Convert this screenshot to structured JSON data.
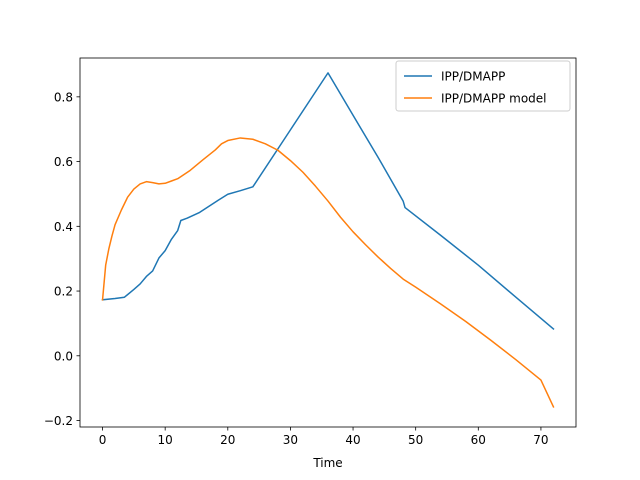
{
  "chart_data": {
    "type": "line",
    "xlabel": "Time",
    "ylabel": "",
    "title": "",
    "xlim": [
      -3.6,
      75.6
    ],
    "ylim": [
      -0.22,
      0.92
    ],
    "xticks": [
      0,
      10,
      20,
      30,
      40,
      50,
      60,
      70
    ],
    "yticks": [
      -0.2,
      0.0,
      0.2,
      0.4,
      0.6,
      0.8
    ],
    "ytick_labels": [
      "−0.2",
      "0.0",
      "0.2",
      "0.4",
      "0.6",
      "0.8"
    ],
    "grid": false,
    "legend_position": "top-right",
    "series": [
      {
        "name": "IPP/DMAPP",
        "color": "#1f77b4",
        "points": [
          [
            0,
            0.173
          ],
          [
            2,
            0.177
          ],
          [
            3.5,
            0.181
          ],
          [
            5,
            0.205
          ],
          [
            6,
            0.222
          ],
          [
            7,
            0.245
          ],
          [
            8,
            0.262
          ],
          [
            9,
            0.302
          ],
          [
            10,
            0.325
          ],
          [
            11,
            0.36
          ],
          [
            12,
            0.387
          ],
          [
            12.5,
            0.418
          ],
          [
            13.5,
            0.425
          ],
          [
            15.5,
            0.443
          ],
          [
            17,
            0.462
          ],
          [
            18.5,
            0.481
          ],
          [
            20,
            0.499
          ],
          [
            22,
            0.51
          ],
          [
            24,
            0.522
          ],
          [
            30,
            0.698
          ],
          [
            36,
            0.874
          ],
          [
            40,
            0.743
          ],
          [
            44,
            0.613
          ],
          [
            48,
            0.478
          ],
          [
            48.3,
            0.458
          ],
          [
            54,
            0.372
          ],
          [
            60,
            0.28
          ],
          [
            66,
            0.181
          ],
          [
            72,
            0.083
          ]
        ]
      },
      {
        "name": "IPP/DMAPP model",
        "color": "#ff7f0e",
        "points": [
          [
            0,
            0.173
          ],
          [
            0.5,
            0.28
          ],
          [
            1,
            0.33
          ],
          [
            1.5,
            0.37
          ],
          [
            2,
            0.405
          ],
          [
            3,
            0.45
          ],
          [
            4,
            0.49
          ],
          [
            5,
            0.515
          ],
          [
            6,
            0.531
          ],
          [
            7,
            0.538
          ],
          [
            8,
            0.535
          ],
          [
            9,
            0.531
          ],
          [
            10,
            0.533
          ],
          [
            11,
            0.54
          ],
          [
            12,
            0.547
          ],
          [
            14,
            0.573
          ],
          [
            16,
            0.605
          ],
          [
            18,
            0.636
          ],
          [
            19,
            0.655
          ],
          [
            20,
            0.665
          ],
          [
            22,
            0.673
          ],
          [
            24,
            0.669
          ],
          [
            26,
            0.655
          ],
          [
            28,
            0.635
          ],
          [
            30,
            0.603
          ],
          [
            32,
            0.567
          ],
          [
            34,
            0.524
          ],
          [
            36,
            0.478
          ],
          [
            38,
            0.428
          ],
          [
            40,
            0.383
          ],
          [
            42,
            0.343
          ],
          [
            44,
            0.305
          ],
          [
            46,
            0.27
          ],
          [
            48,
            0.237
          ],
          [
            50,
            0.212
          ],
          [
            54,
            0.16
          ],
          [
            58,
            0.106
          ],
          [
            62,
            0.048
          ],
          [
            66,
            -0.012
          ],
          [
            70,
            -0.075
          ],
          [
            72,
            -0.158
          ]
        ]
      }
    ]
  }
}
